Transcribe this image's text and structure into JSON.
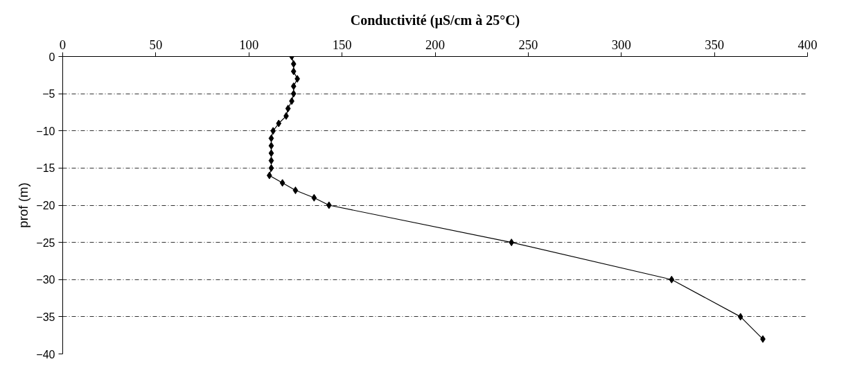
{
  "chart_data": {
    "type": "line",
    "title": "Conductivité (µS/cm à 25°C)",
    "ylabel": "prof (m)",
    "x": [
      123,
      124,
      124,
      126,
      124,
      124,
      123,
      121,
      120,
      116,
      113,
      112,
      112,
      112,
      112,
      112,
      111,
      118,
      125,
      135,
      143,
      241,
      327,
      364,
      376
    ],
    "values": [
      0,
      -1,
      -2,
      -3,
      -4,
      -5,
      -6,
      -7,
      -8,
      -9,
      -10,
      -11,
      -12,
      -13,
      -14,
      -15,
      -16,
      -17,
      -18,
      -19,
      -20,
      -25,
      -30,
      -35,
      -38
    ],
    "color": "#000000",
    "marker": "diamond",
    "line_style": "solid",
    "xlim": [
      0,
      400
    ],
    "xticks": [
      0,
      50,
      100,
      150,
      200,
      250,
      300,
      350,
      400
    ],
    "ylim": [
      -40,
      0
    ],
    "yticks": [
      0,
      -5,
      -10,
      -15,
      -20,
      -25,
      -30,
      -35,
      -40
    ],
    "grid": "y"
  }
}
